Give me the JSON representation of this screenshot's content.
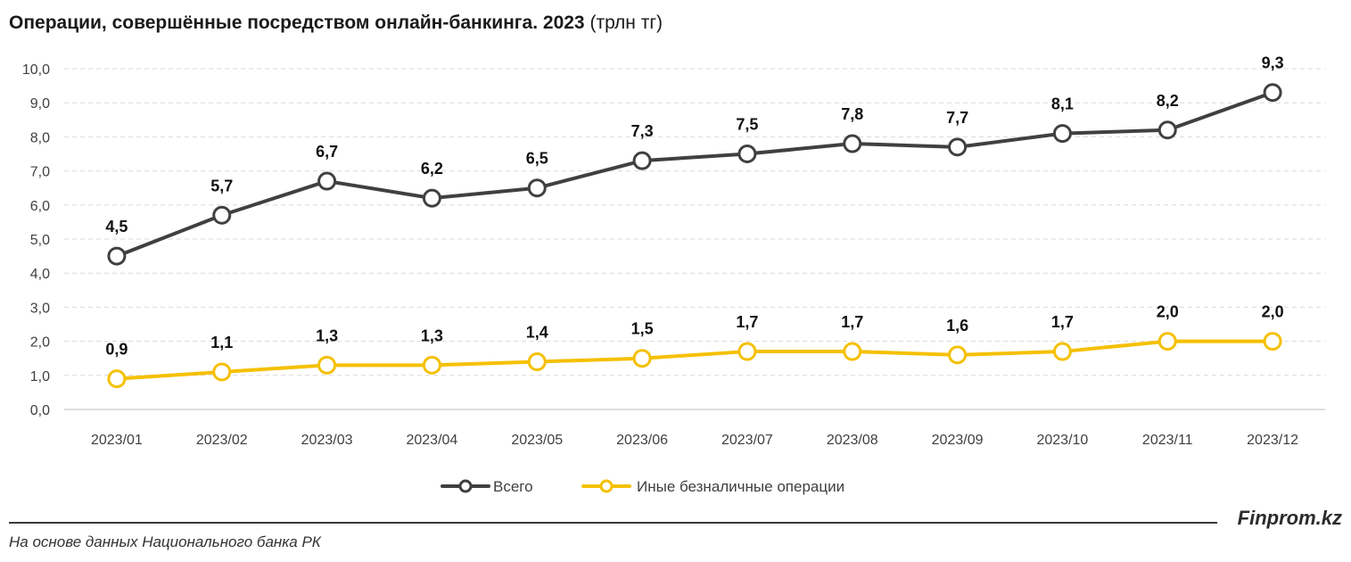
{
  "header": {
    "title_main": "Операции, совершённые посредством онлайн-банкинга. 2023",
    "title_unit": "(трлн тг)"
  },
  "footer": {
    "brand": "Finprom.kz",
    "source": "На основе данных Национального банка РК"
  },
  "chart_data": {
    "type": "line",
    "title": "Операции, совершённые посредством онлайн-банкинга. 2023 (трлн тг)",
    "categories": [
      "2023/01",
      "2023/02",
      "2023/03",
      "2023/04",
      "2023/05",
      "2023/06",
      "2023/07",
      "2023/08",
      "2023/09",
      "2023/10",
      "2023/11",
      "2023/12"
    ],
    "y_ticks": [
      "0,0",
      "1,0",
      "2,0",
      "3,0",
      "4,0",
      "5,0",
      "6,0",
      "7,0",
      "8,0",
      "9,0",
      "10,0"
    ],
    "ylim": [
      0,
      10
    ],
    "grid": true,
    "legend_position": "bottom",
    "series": [
      {
        "name": "Всего",
        "color": "#404040",
        "values": [
          4.5,
          5.7,
          6.7,
          6.2,
          6.5,
          7.3,
          7.5,
          7.8,
          7.7,
          8.1,
          8.2,
          9.3
        ],
        "labels": [
          "4,5",
          "5,7",
          "6,7",
          "6,2",
          "6,5",
          "7,3",
          "7,5",
          "7,8",
          "7,7",
          "8,1",
          "8,2",
          "9,3"
        ]
      },
      {
        "name": "Иные безналичные операции",
        "color": "#f5c000",
        "values": [
          0.9,
          1.1,
          1.3,
          1.3,
          1.4,
          1.5,
          1.7,
          1.7,
          1.6,
          1.7,
          2.0,
          2.0
        ],
        "labels": [
          "0,9",
          "1,1",
          "1,3",
          "1,3",
          "1,4",
          "1,5",
          "1,7",
          "1,7",
          "1,6",
          "1,7",
          "2,0",
          "2,0"
        ]
      }
    ]
  }
}
